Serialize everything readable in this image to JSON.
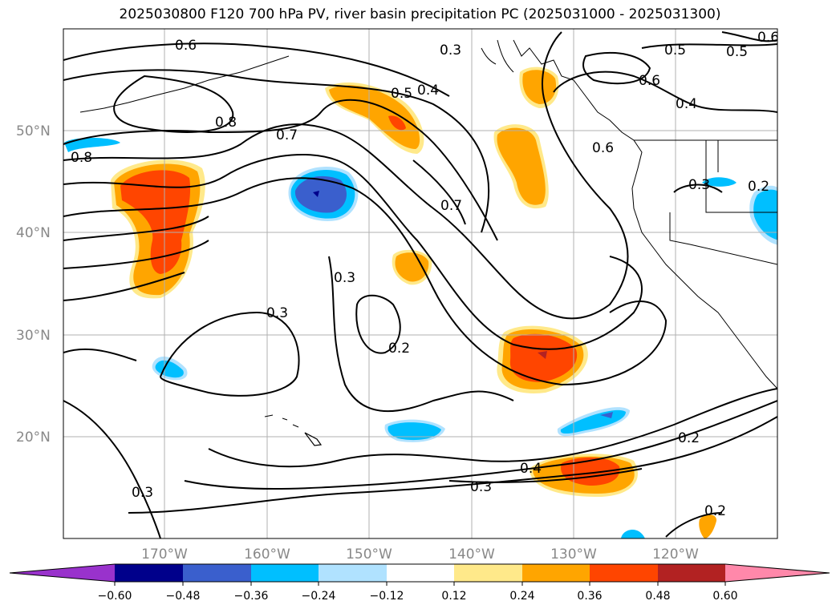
{
  "title": "2025030800 F120 700 hPa PV, river basin precipitation PC (2025031000 - 2025031300)",
  "map": {
    "lat_ticks": [
      "50°N",
      "40°N",
      "30°N",
      "20°N"
    ],
    "lon_ticks": [
      "170°W",
      "160°W",
      "150°W",
      "140°W",
      "130°W",
      "120°W"
    ],
    "contour_labels": [
      {
        "text": "0.6"
      },
      {
        "text": "0.8"
      },
      {
        "text": "0.7"
      },
      {
        "text": "0.5"
      },
      {
        "text": "0.4"
      },
      {
        "text": "0.3"
      },
      {
        "text": "0.7"
      },
      {
        "text": "0.5"
      },
      {
        "text": "0.5"
      },
      {
        "text": "0.6"
      },
      {
        "text": "0.4"
      },
      {
        "text": "0.6"
      },
      {
        "text": "0.6"
      },
      {
        "text": "0.3"
      },
      {
        "text": "0.8"
      },
      {
        "text": "0.2"
      },
      {
        "text": "0.3"
      },
      {
        "text": "0.3"
      },
      {
        "text": "0.2"
      },
      {
        "text": "0.3"
      },
      {
        "text": "0.4"
      },
      {
        "text": "0.3"
      },
      {
        "text": "0.2"
      },
      {
        "text": "0.2"
      }
    ]
  },
  "colorbar": {
    "ticks": [
      "−0.60",
      "−0.48",
      "−0.36",
      "−0.24",
      "−0.12",
      "0.12",
      "0.24",
      "0.36",
      "0.48",
      "0.60"
    ],
    "colors": {
      "under": "#9932cc",
      "b1": "#00008b",
      "b2": "#3a5fcd",
      "b3": "#00bfff",
      "b4": "#b0e2ff",
      "b5": "#ffffff",
      "b6": "#ffe98a",
      "b7": "#ffa500",
      "b8": "#ff4500",
      "b9": "#b22222",
      "over": "#ff88aa"
    }
  }
}
